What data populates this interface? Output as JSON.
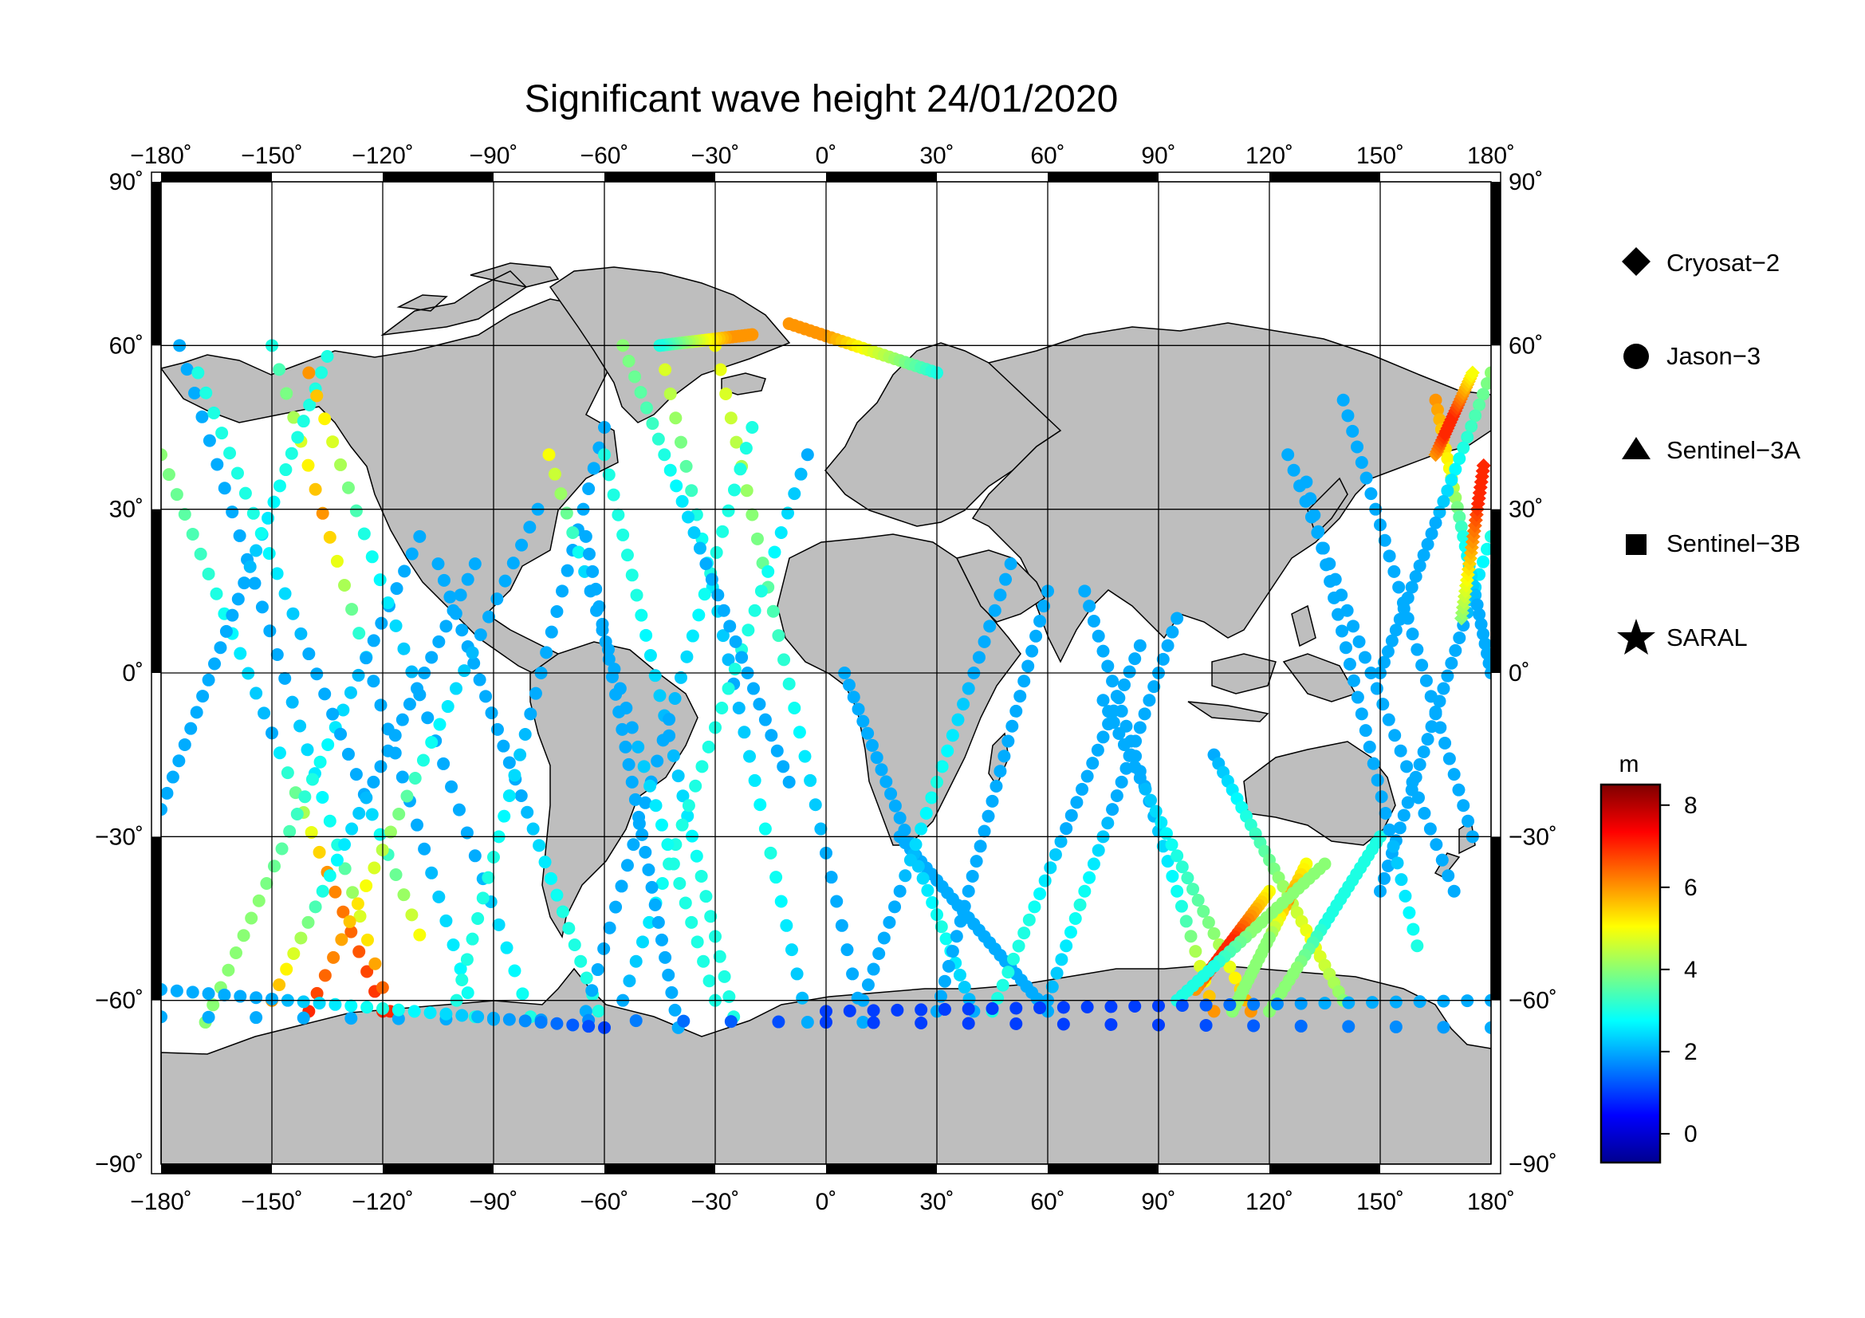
{
  "title": "Significant wave height 24/01/2020",
  "map": {
    "projection": "equirectangular",
    "lon_range": [
      -180,
      180
    ],
    "lat_range": [
      -90,
      90
    ],
    "lon_grid_step": 30,
    "lat_grid_step": 30,
    "grid": true,
    "frame": "alternating black/white bars every 30 degrees",
    "land_color": "#bebebe",
    "ocean_color": "#ffffff",
    "lon_tick_labels": [
      "−180˚",
      "−150˚",
      "−120˚",
      "−90˚",
      "−60˚",
      "−30˚",
      "0˚",
      "30˚",
      "60˚",
      "90˚",
      "120˚",
      "150˚",
      "180˚"
    ],
    "lat_tick_labels": [
      "90˚",
      "60˚",
      "30˚",
      "0˚",
      "−30˚",
      "−60˚",
      "−90˚"
    ]
  },
  "legend": {
    "position": "right",
    "items": [
      {
        "label": "Cryosat−2",
        "marker": "diamond"
      },
      {
        "label": "Jason−3",
        "marker": "circle"
      },
      {
        "label": "Sentinel−3A",
        "marker": "triangle"
      },
      {
        "label": "Sentinel−3B",
        "marker": "square"
      },
      {
        "label": "SARAL",
        "marker": "star"
      }
    ]
  },
  "colorbar": {
    "unit": "m",
    "range": [
      -0.7,
      8.5
    ],
    "ticks": [
      "0",
      "2",
      "4",
      "6",
      "8"
    ],
    "tick_values": [
      0,
      2,
      4,
      6,
      8
    ],
    "colormap": "jet",
    "stops": [
      "#00008f",
      "#0000ff",
      "#007fff",
      "#00ffff",
      "#7fff7f",
      "#ffff00",
      "#ff7f00",
      "#ff0000",
      "#7f0000"
    ]
  },
  "chart_data": {
    "type": "scatter",
    "description_of_marks": "satellite altimeter ground tracks coloured by significant wave height",
    "xlabel": "",
    "ylabel": "",
    "xlim": [
      -180,
      180
    ],
    "ylim": [
      -90,
      90
    ],
    "tracks": [
      {
        "mission": "Jason−3",
        "from": [
          -180,
          40
        ],
        "to": [
          -120,
          -62
        ],
        "swh": [
          4,
          3,
          2,
          6,
          7
        ]
      },
      {
        "mission": "Jason−3",
        "from": [
          -150,
          60
        ],
        "to": [
          -95,
          -63
        ],
        "swh": [
          3,
          6,
          2,
          2,
          3
        ]
      },
      {
        "mission": "Jason−3",
        "from": [
          -175,
          60
        ],
        "to": [
          -118,
          -62
        ],
        "swh": [
          2,
          2,
          2,
          3,
          7
        ]
      },
      {
        "mission": "Jason−3",
        "from": [
          -135,
          58
        ],
        "to": [
          -180,
          -25
        ],
        "swh": [
          3,
          3,
          2,
          2,
          2
        ]
      },
      {
        "mission": "Jason−3",
        "from": [
          -110,
          25
        ],
        "to": [
          -168,
          -64
        ],
        "swh": [
          2,
          2,
          3,
          4,
          4
        ]
      },
      {
        "mission": "Jason−3",
        "from": [
          -170,
          55
        ],
        "to": [
          -110,
          -48
        ],
        "swh": [
          3,
          3,
          2,
          2,
          5
        ]
      },
      {
        "mission": "Jason−3",
        "from": [
          -140,
          55
        ],
        "to": [
          -80,
          -63
        ],
        "swh": [
          6,
          3,
          2,
          2,
          3
        ]
      },
      {
        "mission": "Jason−3",
        "from": [
          -105,
          20
        ],
        "to": [
          -60,
          -65
        ],
        "swh": [
          2,
          2,
          2,
          3,
          3
        ]
      },
      {
        "mission": "Jason−3",
        "from": [
          -78,
          30
        ],
        "to": [
          -140,
          -62
        ],
        "swh": [
          2,
          2,
          3,
          5,
          7
        ]
      },
      {
        "mission": "Jason−3",
        "from": [
          -95,
          20
        ],
        "to": [
          -150,
          -60
        ],
        "swh": [
          2,
          2,
          2,
          3,
          6
        ]
      },
      {
        "mission": "Jason−3",
        "from": [
          -60,
          45
        ],
        "to": [
          -100,
          -60
        ],
        "swh": [
          2,
          2,
          2,
          3,
          3
        ]
      },
      {
        "mission": "Jason−3",
        "from": [
          -30,
          60
        ],
        "to": [
          10,
          -64
        ],
        "swh": [
          5,
          4,
          3,
          2,
          2
        ]
      },
      {
        "mission": "Jason−3",
        "from": [
          -45,
          60
        ],
        "to": [
          -5,
          -64
        ],
        "swh": [
          5,
          3,
          2,
          3,
          2
        ]
      },
      {
        "mission": "Jason−3",
        "from": [
          -60,
          40
        ],
        "to": [
          -25,
          -63
        ],
        "swh": [
          3,
          3,
          2,
          3,
          3
        ]
      },
      {
        "mission": "Jason−3",
        "from": [
          -20,
          45
        ],
        "to": [
          -65,
          -62
        ],
        "swh": [
          3,
          3,
          2,
          2,
          2
        ]
      },
      {
        "mission": "Jason−3",
        "from": [
          -5,
          40
        ],
        "to": [
          -55,
          -60
        ],
        "swh": [
          2,
          3,
          3,
          3,
          2
        ]
      },
      {
        "mission": "Jason−3",
        "from": [
          -75,
          40
        ],
        "to": [
          -30,
          -60
        ],
        "swh": [
          5,
          2,
          2,
          3,
          3
        ]
      },
      {
        "mission": "Jason−3",
        "from": [
          -55,
          60
        ],
        "to": [
          -10,
          -20
        ],
        "swh": [
          4,
          3,
          2,
          2,
          2
        ]
      },
      {
        "mission": "Jason−3",
        "from": [
          -65,
          25
        ],
        "to": [
          -40,
          -65
        ],
        "swh": [
          2,
          2,
          2,
          2,
          2
        ]
      },
      {
        "mission": "Jason−3",
        "from": [
          -10,
          64
        ],
        "to": [
          30,
          55
        ],
        "swh": [
          6,
          6,
          5,
          4,
          3
        ]
      },
      {
        "mission": "Jason−3",
        "from": [
          -20,
          62
        ],
        "to": [
          -45,
          60
        ],
        "swh": [
          6,
          6,
          5,
          4,
          3
        ]
      },
      {
        "mission": "Jason−3",
        "from": [
          20,
          -30
        ],
        "to": [
          60,
          -62
        ],
        "swh": [
          2,
          2,
          2,
          2,
          2
        ]
      },
      {
        "mission": "Jason−3",
        "from": [
          5,
          0
        ],
        "to": [
          40,
          -62
        ],
        "swh": [
          2,
          2,
          2,
          3,
          2
        ]
      },
      {
        "mission": "Jason−3",
        "from": [
          50,
          20
        ],
        "to": [
          10,
          -60
        ],
        "swh": [
          2,
          2,
          3,
          2,
          2
        ]
      },
      {
        "mission": "Jason−3",
        "from": [
          60,
          15
        ],
        "to": [
          30,
          -62
        ],
        "swh": [
          2,
          2,
          2,
          2,
          2
        ]
      },
      {
        "mission": "Jason−3",
        "from": [
          70,
          15
        ],
        "to": [
          105,
          -62
        ],
        "swh": [
          2,
          2,
          2,
          3,
          6
        ]
      },
      {
        "mission": "Jason−3",
        "from": [
          85,
          5
        ],
        "to": [
          45,
          -62
        ],
        "swh": [
          2,
          2,
          2,
          3,
          3
        ]
      },
      {
        "mission": "Jason−3",
        "from": [
          75,
          -5
        ],
        "to": [
          115,
          -62
        ],
        "swh": [
          2,
          2,
          3,
          4,
          6
        ]
      },
      {
        "mission": "Jason−3",
        "from": [
          95,
          10
        ],
        "to": [
          60,
          -60
        ],
        "swh": [
          2,
          2,
          2,
          3,
          2
        ]
      },
      {
        "mission": "Jason−3",
        "from": [
          105,
          -15
        ],
        "to": [
          140,
          -60
        ],
        "swh": [
          2,
          3,
          4,
          5,
          4
        ]
      },
      {
        "mission": "Jason−3",
        "from": [
          120,
          -40
        ],
        "to": [
          100,
          -58
        ],
        "swh": [
          5,
          6,
          7,
          7,
          6
        ]
      },
      {
        "mission": "Jason−3",
        "from": [
          130,
          -35
        ],
        "to": [
          110,
          -62
        ],
        "swh": [
          5,
          6,
          4,
          4,
          4
        ]
      },
      {
        "mission": "Jason−3",
        "from": [
          135,
          -35
        ],
        "to": [
          95,
          -60
        ],
        "swh": [
          4,
          4,
          4,
          3,
          3
        ]
      },
      {
        "mission": "Jason−3",
        "from": [
          150,
          -30
        ],
        "to": [
          120,
          -62
        ],
        "swh": [
          3,
          3,
          3,
          4,
          4
        ]
      },
      {
        "mission": "Jason−3",
        "from": [
          140,
          50
        ],
        "to": [
          175,
          -30
        ],
        "swh": [
          2,
          2,
          2,
          2,
          2
        ]
      },
      {
        "mission": "Jason−3",
        "from": [
          125,
          40
        ],
        "to": [
          170,
          -40
        ],
        "swh": [
          2,
          2,
          2,
          2,
          2
        ]
      },
      {
        "mission": "Jason−3",
        "from": [
          180,
          25
        ],
        "to": [
          150,
          -40
        ],
        "swh": [
          3,
          2,
          2,
          2,
          2
        ]
      },
      {
        "mission": "Jason−3",
        "from": [
          165,
          50
        ],
        "to": [
          180,
          0
        ],
        "swh": [
          6,
          5,
          3,
          2,
          2
        ]
      },
      {
        "mission": "Jason−3",
        "from": [
          180,
          55
        ],
        "to": [
          150,
          0
        ],
        "swh": [
          4,
          3,
          2,
          2,
          2
        ]
      },
      {
        "mission": "Jason−3",
        "from": [
          130,
          35
        ],
        "to": [
          160,
          -50
        ],
        "swh": [
          2,
          2,
          2,
          2,
          3
        ]
      },
      {
        "mission": "Cryosat−2",
        "from": [
          165,
          40
        ],
        "to": [
          175,
          55
        ],
        "swh": [
          6,
          7,
          7,
          6,
          5
        ]
      },
      {
        "mission": "Cryosat−2",
        "from": [
          172,
          10
        ],
        "to": [
          178,
          38
        ],
        "swh": [
          4,
          5,
          6,
          7,
          7
        ]
      },
      {
        "mission": "Jason−3",
        "from": [
          -180,
          -63
        ],
        "to": [
          180,
          -65
        ],
        "swh": [
          2,
          2,
          1,
          1,
          2
        ]
      },
      {
        "mission": "Jason−3",
        "from": [
          -180,
          -58
        ],
        "to": [
          -60,
          -65
        ],
        "swh": [
          2,
          2,
          3,
          2,
          1
        ]
      },
      {
        "mission": "Jason−3",
        "from": [
          0,
          -62
        ],
        "to": [
          180,
          -60
        ],
        "swh": [
          1,
          1,
          1,
          2,
          2
        ]
      }
    ]
  }
}
